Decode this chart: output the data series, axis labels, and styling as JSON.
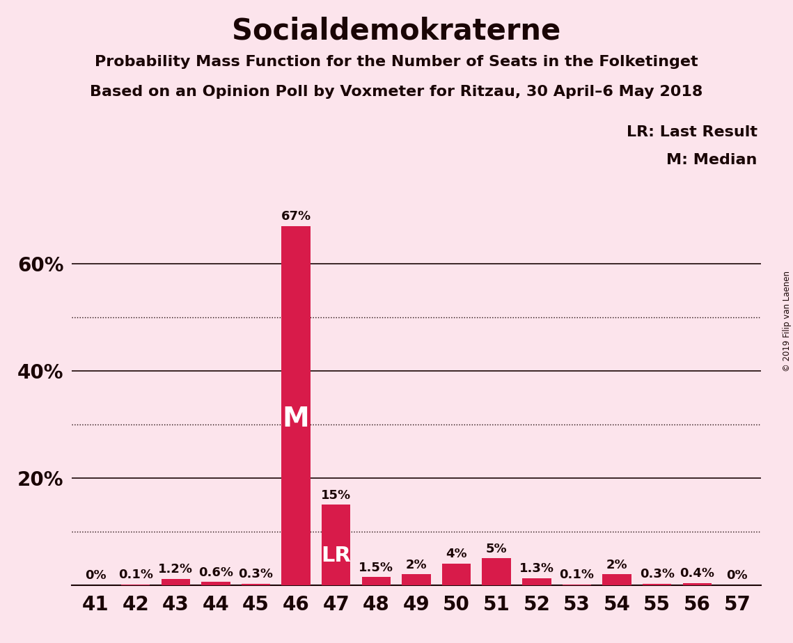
{
  "title": "Socialdemokraterne",
  "subtitle1": "Probability Mass Function for the Number of Seats in the Folketinget",
  "subtitle2": "Based on an Opinion Poll by Voxmeter for Ritzau, 30 April–6 May 2018",
  "copyright": "© 2019 Filip van Laenen",
  "legend_lr": "LR: Last Result",
  "legend_m": "M: Median",
  "background_color": "#fce4ec",
  "bar_color": "#d81b4a",
  "seats": [
    41,
    42,
    43,
    44,
    45,
    46,
    47,
    48,
    49,
    50,
    51,
    52,
    53,
    54,
    55,
    56,
    57
  ],
  "values": [
    0.0,
    0.1,
    1.2,
    0.6,
    0.3,
    67.0,
    15.0,
    1.5,
    2.0,
    4.0,
    5.0,
    1.3,
    0.1,
    2.0,
    0.3,
    0.4,
    0.0
  ],
  "labels": [
    "0%",
    "0.1%",
    "1.2%",
    "0.6%",
    "0.3%",
    "67%",
    "15%",
    "1.5%",
    "2%",
    "4%",
    "5%",
    "1.3%",
    "0.1%",
    "2%",
    "0.3%",
    "0.4%",
    "0%"
  ],
  "median_seat": 46,
  "lr_seat": 47,
  "ylim": [
    0,
    72
  ],
  "solid_gridlines": [
    60,
    40,
    20
  ],
  "dotted_gridlines": [
    50,
    30,
    10
  ],
  "title_fontsize": 30,
  "subtitle_fontsize": 16,
  "label_fontsize": 13,
  "tick_fontsize": 20,
  "annotation_fontsize": 22,
  "text_color": "#1a0505"
}
